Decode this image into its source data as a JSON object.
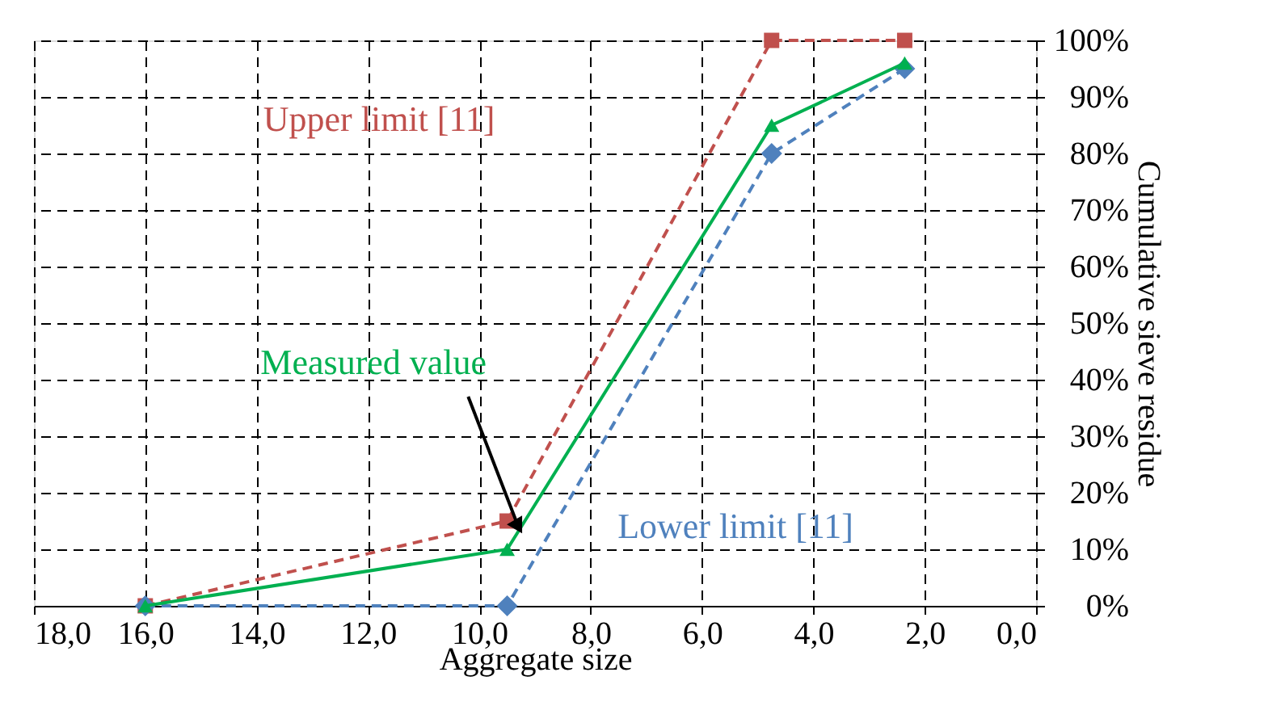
{
  "chart_data": {
    "type": "line",
    "xlabel": "Aggregate size",
    "ylabel": "Cumulative sieve residue",
    "x": [
      16,
      9.5,
      4.75,
      2.36
    ],
    "xlim": [
      18,
      0
    ],
    "xticks": [
      {
        "value": 18,
        "label": "18,0"
      },
      {
        "value": 16,
        "label": "16,0"
      },
      {
        "value": 14,
        "label": "14,0"
      },
      {
        "value": 12,
        "label": "12,0"
      },
      {
        "value": 10,
        "label": "10,0"
      },
      {
        "value": 8,
        "label": "8,0"
      },
      {
        "value": 6,
        "label": "6,0"
      },
      {
        "value": 4,
        "label": "4,0"
      },
      {
        "value": 2,
        "label": "2,0"
      },
      {
        "value": 0,
        "label": "0,0"
      }
    ],
    "ylim": [
      0,
      100
    ],
    "yticks": [
      {
        "value": 0,
        "label": "0%"
      },
      {
        "value": 10,
        "label": "10%"
      },
      {
        "value": 20,
        "label": "20%"
      },
      {
        "value": 30,
        "label": "30%"
      },
      {
        "value": 40,
        "label": "40%"
      },
      {
        "value": 50,
        "label": "50%"
      },
      {
        "value": 60,
        "label": "60%"
      },
      {
        "value": 70,
        "label": "70%"
      },
      {
        "value": 80,
        "label": "80%"
      },
      {
        "value": 90,
        "label": "90%"
      },
      {
        "value": 100,
        "label": "100%"
      }
    ],
    "grid": true,
    "series": [
      {
        "name": "Upper limit [11]",
        "color": "#c0504d",
        "values": [
          0,
          15,
          100,
          100
        ],
        "marker": "square",
        "line_style": "dashed"
      },
      {
        "name": "Lower limit [11]",
        "color": "#4f81bd",
        "values": [
          0,
          0,
          80,
          95
        ],
        "marker": "diamond",
        "line_style": "dashed"
      },
      {
        "name": "Measured value",
        "color": "#00b050",
        "values": [
          0,
          10,
          85,
          96
        ],
        "marker": "triangle",
        "line_style": "solid"
      }
    ]
  }
}
